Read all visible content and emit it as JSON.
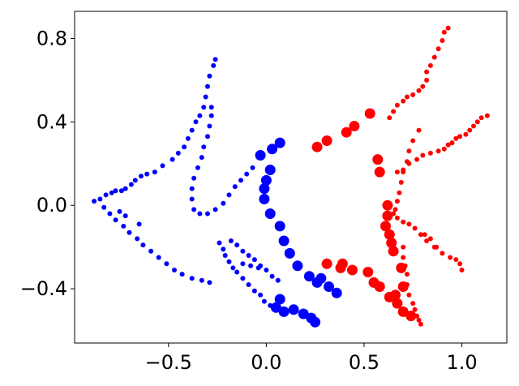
{
  "chart_data": {
    "type": "scatter",
    "title": "",
    "xlabel": "",
    "ylabel": "",
    "xlim": [
      -0.98,
      1.23
    ],
    "ylim": [
      -0.66,
      0.93
    ],
    "xticks": [
      -0.5,
      0.0,
      0.5,
      1.0
    ],
    "yticks": [
      -0.4,
      0.0,
      0.4,
      0.8
    ],
    "xtick_labels": [
      "−0.5",
      "0.0",
      "0.5",
      "1.0"
    ],
    "ytick_labels": [
      "−0.4",
      "0.0",
      "0.4",
      "0.8"
    ],
    "grid": false,
    "legend": "none",
    "series": [
      {
        "color": "#0000ff",
        "marker_size": "small",
        "points": [
          [
            -0.88,
            0.02
          ],
          [
            -0.85,
            0.03
          ],
          [
            -0.82,
            0.05
          ],
          [
            -0.79,
            0.06
          ],
          [
            -0.77,
            0.07
          ],
          [
            -0.74,
            0.07
          ],
          [
            -0.72,
            0.08
          ],
          [
            -0.69,
            0.1
          ],
          [
            -0.67,
            0.12
          ],
          [
            -0.64,
            0.14
          ],
          [
            -0.61,
            0.15
          ],
          [
            -0.57,
            0.16
          ],
          [
            -0.53,
            0.19
          ],
          [
            -0.48,
            0.22
          ],
          [
            -0.45,
            0.25
          ],
          [
            -0.42,
            0.28
          ],
          [
            -0.4,
            0.32
          ],
          [
            -0.38,
            0.36
          ],
          [
            -0.36,
            0.4
          ],
          [
            -0.34,
            0.43
          ],
          [
            -0.32,
            0.47
          ],
          [
            -0.31,
            0.52
          ],
          [
            -0.3,
            0.57
          ],
          [
            -0.29,
            0.62
          ],
          [
            -0.27,
            0.67
          ],
          [
            -0.26,
            0.7
          ],
          [
            -0.28,
            0.47
          ],
          [
            -0.28,
            0.43
          ],
          [
            -0.29,
            0.38
          ],
          [
            -0.3,
            0.33
          ],
          [
            -0.32,
            0.28
          ],
          [
            -0.33,
            0.23
          ],
          [
            -0.35,
            0.18
          ],
          [
            -0.37,
            0.13
          ],
          [
            -0.38,
            0.08
          ],
          [
            -0.38,
            0.03
          ],
          [
            -0.37,
            -0.02
          ],
          [
            -0.34,
            -0.04
          ],
          [
            -0.3,
            -0.04
          ],
          [
            -0.26,
            -0.02
          ],
          [
            -0.22,
            0.01
          ],
          [
            -0.19,
            0.05
          ],
          [
            -0.16,
            0.09
          ],
          [
            -0.13,
            0.12
          ],
          [
            -0.1,
            0.15
          ],
          [
            -0.07,
            0.18
          ],
          [
            -0.83,
            -0.01
          ],
          [
            -0.8,
            -0.04
          ],
          [
            -0.77,
            -0.07
          ],
          [
            -0.73,
            -0.1
          ],
          [
            -0.7,
            -0.13
          ],
          [
            -0.66,
            -0.16
          ],
          [
            -0.63,
            -0.19
          ],
          [
            -0.59,
            -0.22
          ],
          [
            -0.55,
            -0.25
          ],
          [
            -0.51,
            -0.28
          ],
          [
            -0.47,
            -0.31
          ],
          [
            -0.43,
            -0.33
          ],
          [
            -0.38,
            -0.35
          ],
          [
            -0.33,
            -0.36
          ],
          [
            -0.29,
            -0.37
          ],
          [
            -0.75,
            -0.03
          ],
          [
            -0.72,
            -0.05
          ],
          [
            -0.65,
            -0.09
          ],
          [
            -0.24,
            -0.18
          ],
          [
            -0.22,
            -0.21
          ],
          [
            -0.21,
            -0.24
          ],
          [
            -0.19,
            -0.27
          ],
          [
            -0.17,
            -0.3
          ],
          [
            -0.15,
            -0.32
          ],
          [
            -0.12,
            -0.35
          ],
          [
            -0.09,
            -0.38
          ],
          [
            -0.06,
            -0.41
          ],
          [
            -0.03,
            -0.43
          ],
          [
            -0.01,
            -0.46
          ],
          [
            0.02,
            -0.48
          ],
          [
            -0.18,
            -0.17
          ],
          [
            -0.15,
            -0.19
          ],
          [
            -0.12,
            -0.22
          ],
          [
            -0.09,
            -0.24
          ],
          [
            -0.06,
            -0.26
          ],
          [
            -0.03,
            -0.29
          ],
          [
            0.0,
            -0.31
          ],
          [
            0.03,
            -0.34
          ],
          [
            0.06,
            -0.36
          ],
          [
            -0.12,
            -0.28
          ],
          [
            -0.08,
            -0.29
          ],
          [
            -0.04,
            -0.3
          ]
        ]
      },
      {
        "color": "#0000ff",
        "marker_size": "large",
        "points": [
          [
            -0.03,
            0.24
          ],
          [
            0.03,
            0.27
          ],
          [
            0.07,
            0.3
          ],
          [
            0.02,
            0.17
          ],
          [
            0.0,
            0.12
          ],
          [
            -0.01,
            0.08
          ],
          [
            -0.01,
            0.03
          ],
          [
            0.02,
            -0.04
          ],
          [
            0.07,
            -0.1
          ],
          [
            0.09,
            -0.17
          ],
          [
            0.12,
            -0.23
          ],
          [
            0.16,
            -0.29
          ],
          [
            0.22,
            -0.34
          ],
          [
            0.26,
            -0.37
          ],
          [
            0.28,
            -0.35
          ],
          [
            0.32,
            -0.39
          ],
          [
            0.36,
            -0.42
          ],
          [
            0.07,
            -0.45
          ],
          [
            0.05,
            -0.49
          ],
          [
            0.09,
            -0.51
          ],
          [
            0.14,
            -0.5
          ],
          [
            0.19,
            -0.52
          ],
          [
            0.23,
            -0.54
          ],
          [
            0.25,
            -0.56
          ]
        ]
      },
      {
        "color": "#ff0000",
        "marker_size": "small",
        "points": [
          [
            0.93,
            0.85
          ],
          [
            0.91,
            0.83
          ],
          [
            0.9,
            0.79
          ],
          [
            0.88,
            0.75
          ],
          [
            0.86,
            0.71
          ],
          [
            0.84,
            0.67
          ],
          [
            0.82,
            0.64
          ],
          [
            0.82,
            0.6
          ],
          [
            0.8,
            0.57
          ],
          [
            0.78,
            0.55
          ],
          [
            0.75,
            0.53
          ],
          [
            0.72,
            0.52
          ],
          [
            0.7,
            0.5
          ],
          [
            0.67,
            0.48
          ],
          [
            0.65,
            0.45
          ],
          [
            0.63,
            0.42
          ],
          [
            1.13,
            0.43
          ],
          [
            1.1,
            0.42
          ],
          [
            1.08,
            0.4
          ],
          [
            1.06,
            0.38
          ],
          [
            1.04,
            0.36
          ],
          [
            1.02,
            0.34
          ],
          [
            0.99,
            0.33
          ],
          [
            0.97,
            0.32
          ],
          [
            0.95,
            0.3
          ],
          [
            0.93,
            0.29
          ],
          [
            0.91,
            0.27
          ],
          [
            0.88,
            0.26
          ],
          [
            0.84,
            0.25
          ],
          [
            0.8,
            0.24
          ],
          [
            0.77,
            0.22
          ],
          [
            0.73,
            0.2
          ],
          [
            0.7,
            0.17
          ],
          [
            0.67,
            0.16
          ],
          [
            0.78,
            0.36
          ],
          [
            0.75,
            0.31
          ],
          [
            0.73,
            0.26
          ],
          [
            0.72,
            0.21
          ],
          [
            0.7,
            0.16
          ],
          [
            0.69,
            0.11
          ],
          [
            0.68,
            0.06
          ],
          [
            0.67,
            0.02
          ],
          [
            0.66,
            -0.02
          ],
          [
            0.65,
            -0.04
          ],
          [
            0.67,
            -0.06
          ],
          [
            0.7,
            -0.08
          ],
          [
            0.73,
            -0.09
          ],
          [
            0.76,
            -0.11
          ],
          [
            0.79,
            -0.14
          ],
          [
            0.82,
            -0.17
          ],
          [
            0.86,
            -0.2
          ],
          [
            0.9,
            -0.23
          ],
          [
            0.94,
            -0.25
          ],
          [
            0.97,
            -0.26
          ],
          [
            0.99,
            -0.28
          ],
          [
            1.0,
            -0.31
          ],
          [
            0.7,
            -0.2
          ],
          [
            0.7,
            -0.25
          ],
          [
            0.71,
            -0.29
          ],
          [
            0.72,
            -0.33
          ],
          [
            0.72,
            -0.38
          ],
          [
            0.73,
            -0.43
          ],
          [
            0.75,
            -0.47
          ],
          [
            0.76,
            -0.5
          ],
          [
            0.77,
            -0.53
          ],
          [
            0.78,
            -0.55
          ],
          [
            0.79,
            -0.57
          ],
          [
            0.81,
            -0.14
          ],
          [
            0.84,
            -0.16
          ],
          [
            0.87,
            -0.2
          ]
        ]
      },
      {
        "color": "#ff0000",
        "marker_size": "large",
        "points": [
          [
            0.26,
            0.28
          ],
          [
            0.31,
            0.31
          ],
          [
            0.41,
            0.35
          ],
          [
            0.45,
            0.38
          ],
          [
            0.53,
            0.44
          ],
          [
            0.57,
            0.22
          ],
          [
            0.58,
            0.16
          ],
          [
            0.62,
            0.0
          ],
          [
            0.62,
            -0.05
          ],
          [
            0.61,
            -0.1
          ],
          [
            0.63,
            -0.14
          ],
          [
            0.64,
            -0.18
          ],
          [
            0.65,
            -0.22
          ],
          [
            0.69,
            -0.3
          ],
          [
            0.7,
            -0.39
          ],
          [
            0.66,
            -0.43
          ],
          [
            0.63,
            -0.44
          ],
          [
            0.58,
            -0.39
          ],
          [
            0.55,
            -0.37
          ],
          [
            0.52,
            -0.32
          ],
          [
            0.44,
            -0.31
          ],
          [
            0.38,
            -0.3
          ],
          [
            0.31,
            -0.28
          ],
          [
            0.39,
            -0.28
          ],
          [
            0.67,
            -0.47
          ],
          [
            0.7,
            -0.51
          ],
          [
            0.74,
            -0.53
          ]
        ]
      }
    ]
  }
}
